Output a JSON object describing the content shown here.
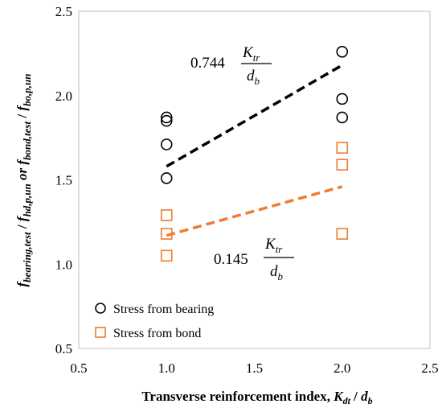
{
  "chart_data": {
    "type": "scatter",
    "xlabel": {
      "main": "Transverse reinforcement index, ",
      "var1": "K",
      "var1_sub": "dt",
      "sep": " / ",
      "var2": "d",
      "var2_sub": "b"
    },
    "ylabel": {
      "p1": "f",
      "p1_sub": "bearing,test",
      "s1": " / ",
      "p2": "f",
      "p2_sub": "hd,p,un",
      "or": "   or  ",
      "p3": "f",
      "p3_sub": "bond,test",
      "s2": " / ",
      "p4": "f",
      "p4_sub": "bo,p,un"
    },
    "xlim": [
      0.5,
      2.5
    ],
    "ylim": [
      0.5,
      2.5
    ],
    "xticks": [
      "0.5",
      "1.0",
      "1.5",
      "2.0",
      "2.5"
    ],
    "yticks": [
      "0.5",
      "1.0",
      "1.5",
      "2.0",
      "2.5"
    ],
    "grid": false,
    "legend_position": "bottom-left",
    "series": [
      {
        "name": "Stress from bearing",
        "marker": "circle",
        "color": "#000000",
        "points": [
          [
            1.0,
            1.51
          ],
          [
            1.0,
            1.71
          ],
          [
            1.0,
            1.85
          ],
          [
            1.0,
            1.87
          ],
          [
            2.0,
            1.87
          ],
          [
            2.0,
            1.98
          ],
          [
            2.0,
            2.26
          ]
        ]
      },
      {
        "name": "Stress from bond",
        "marker": "square",
        "color": "#ED7D31",
        "points": [
          [
            1.0,
            1.05
          ],
          [
            1.0,
            1.18
          ],
          [
            1.0,
            1.29
          ],
          [
            2.0,
            1.18
          ],
          [
            2.0,
            1.59
          ],
          [
            2.0,
            1.69
          ]
        ]
      }
    ],
    "trendlines": [
      {
        "color": "#000000",
        "style": "dashed",
        "x": [
          1.0,
          2.0
        ],
        "y": [
          1.58,
          2.18
        ]
      },
      {
        "color": "#ED7D31",
        "style": "dashed",
        "x": [
          1.0,
          2.0
        ],
        "y": [
          1.17,
          1.46
        ]
      }
    ],
    "annotations": [
      {
        "coef": "0.744",
        "num_var": "K",
        "num_sub": "tr",
        "den_var": "d",
        "den_sub": "b"
      },
      {
        "coef": "0.145",
        "num_var": "K",
        "num_sub": "tr",
        "den_var": "d",
        "den_sub": "b"
      }
    ]
  }
}
